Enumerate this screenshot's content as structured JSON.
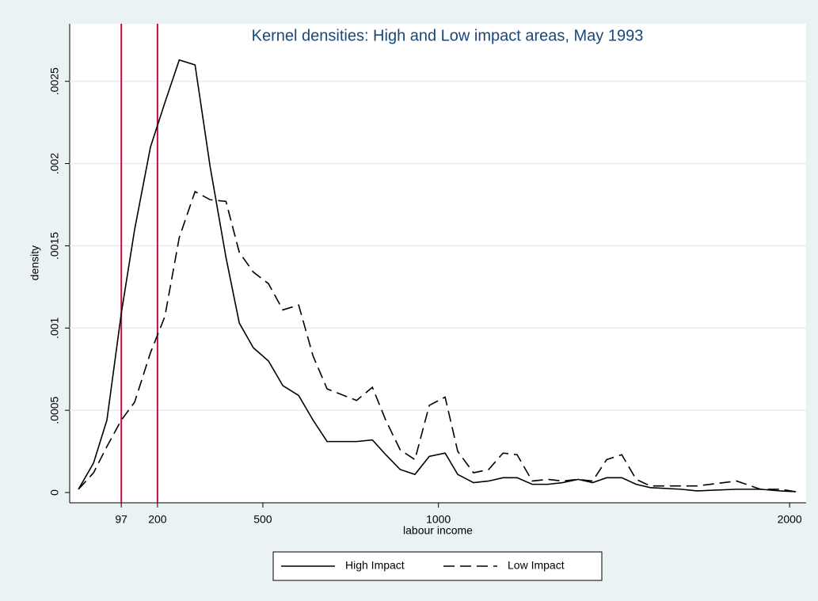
{
  "chart_data": {
    "type": "line",
    "title": "Kernel densities: High and Low impact areas, May 1993",
    "xlabel": "labour income",
    "ylabel": "density",
    "x": [
      -25,
      18,
      56,
      97,
      135,
      180,
      221,
      262,
      307,
      350,
      395,
      433,
      473,
      516,
      557,
      602,
      643,
      683,
      767,
      812,
      850,
      891,
      933,
      974,
      1019,
      1055,
      1100,
      1143,
      1184,
      1224,
      1267,
      1312,
      1353,
      1398,
      1439,
      1479,
      1522,
      1563,
      1603,
      1691,
      1736,
      1849,
      1917,
      1973,
      2018
    ],
    "series": [
      {
        "name": "High Impact",
        "color": "#000000",
        "style": "solid",
        "values": [
          2e-05,
          0.00018,
          0.00044,
          0.00109,
          0.0016,
          0.0021,
          0.00237,
          0.00263,
          0.0026,
          0.00198,
          0.00143,
          0.00103,
          0.00088,
          0.0008,
          0.00065,
          0.00059,
          0.00044,
          0.00031,
          0.00031,
          0.00032,
          0.00023,
          0.00014,
          0.00011,
          0.00022,
          0.00024,
          0.00011,
          6e-05,
          7e-05,
          9e-05,
          9e-05,
          5e-05,
          5e-05,
          6e-05,
          8e-05,
          6e-05,
          9e-05,
          9e-05,
          5e-05,
          3e-05,
          2e-05,
          1e-05,
          2e-05,
          2e-05,
          1e-05,
          5e-06
        ]
      },
      {
        "name": "Low Impact",
        "color": "#000000",
        "style": "dashed",
        "values": [
          2e-05,
          0.00012,
          0.00028,
          0.00044,
          0.00055,
          0.00085,
          0.00107,
          0.00155,
          0.00183,
          0.00178,
          0.00177,
          0.00146,
          0.00134,
          0.00127,
          0.00111,
          0.00114,
          0.00083,
          0.00063,
          0.00056,
          0.00064,
          0.00044,
          0.00026,
          0.0002,
          0.00053,
          0.00058,
          0.00025,
          0.00012,
          0.00014,
          0.00024,
          0.00023,
          7e-05,
          8e-05,
          7e-05,
          8e-05,
          7e-05,
          0.0002,
          0.00023,
          8e-05,
          4e-05,
          4e-05,
          4e-05,
          7e-05,
          2e-05,
          2e-05,
          5e-06
        ]
      }
    ],
    "vlines": [
      97,
      200
    ],
    "vline_color": "#c0103a",
    "xlim": [
      -50,
      2047
    ],
    "xticks": [
      97,
      200,
      500,
      1000,
      2000
    ],
    "ylim": [
      -6.25e-05,
      0.00285
    ],
    "yticks": [
      0,
      {
        "value": 0.0005,
        "label": ".0005"
      },
      {
        "value": 0.001,
        "label": ".001"
      },
      {
        "value": 0.0015,
        "label": ".0015"
      },
      {
        "value": 0.002,
        "label": ".002"
      },
      {
        "value": 0.0025,
        "label": ".0025"
      }
    ],
    "grid": true,
    "legend": "bottom"
  }
}
